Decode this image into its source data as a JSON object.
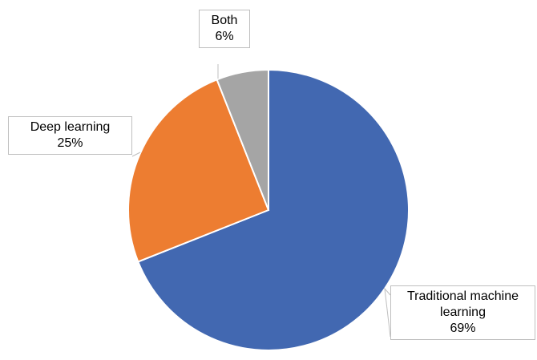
{
  "chart_data": {
    "type": "pie",
    "categories": [
      "Traditional machine learning",
      "Deep learning",
      "Both"
    ],
    "values": [
      69,
      25,
      6
    ],
    "value_labels": [
      "69%",
      "25%",
      "6%"
    ],
    "colors": [
      "#4268b1",
      "#ed7d31",
      "#a5a5a5"
    ]
  }
}
